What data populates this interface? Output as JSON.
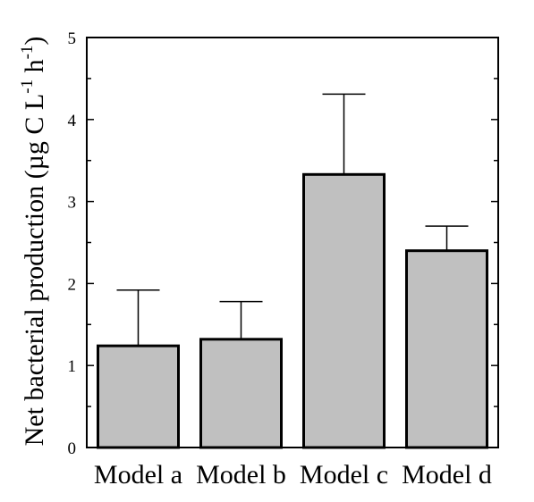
{
  "chart_data": {
    "type": "bar",
    "categories": [
      "Model a",
      "Model b",
      "Model c",
      "Model d"
    ],
    "values": [
      1.24,
      1.32,
      3.33,
      2.4
    ],
    "error_upper": [
      1.92,
      1.78,
      4.31,
      2.7
    ],
    "ylim": [
      0,
      5
    ],
    "yticks": [
      "0",
      "1",
      "2",
      "3",
      "4",
      "5"
    ],
    "ylabel_main": "Net bacterial production (µg C L",
    "ylabel_sup1": "-1",
    "ylabel_mid": " h",
    "ylabel_sup2": "-1",
    "ylabel_end": ")",
    "bar_color": "#c0c0c0",
    "grid": false
  }
}
